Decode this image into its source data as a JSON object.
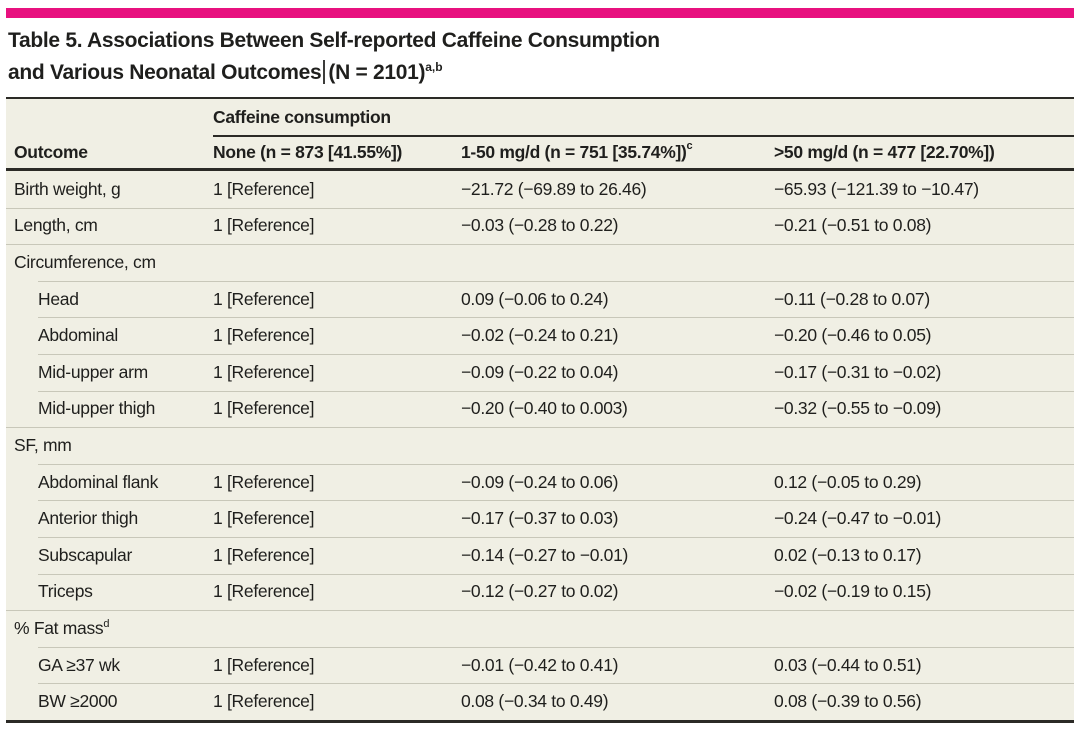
{
  "colors": {
    "accent_bar": "#e8117f",
    "table_background": "#f0efe4",
    "rule_dark": "#2b2a26",
    "rule_light": "#c8c7b9",
    "text": "#1f1f1d"
  },
  "title": {
    "line1": "Table 5. Associations Between Self-reported Caffeine Consumption",
    "line2_part1": "and Various Neonatal Outcomes",
    "line2_part2": "(N = 2101)",
    "sup": "a,b"
  },
  "header": {
    "group_label": "Caffeine consumption",
    "col_outcome": "Outcome",
    "col_none": "None (n = 873 [41.55%])",
    "col_low": "1-50 mg/d (n = 751 [35.74%])",
    "col_low_sup": "c",
    "col_high": ">50 mg/d (n = 477 [22.70%])"
  },
  "rows": [
    {
      "label": "Birth weight, g",
      "none": "1 [Reference]",
      "low": "−21.72 (−69.89 to 26.46)",
      "high": "−65.93 (−121.39 to −10.47)"
    },
    {
      "label": "Length, cm",
      "none": "1 [Reference]",
      "low": "−0.03 (−0.28 to 0.22)",
      "high": "−0.21 (−0.51 to 0.08)"
    },
    {
      "label": "Circumference, cm"
    },
    {
      "label": "Head",
      "none": "1 [Reference]",
      "low": "0.09 (−0.06 to 0.24)",
      "high": "−0.11 (−0.28 to 0.07)"
    },
    {
      "label": "Abdominal",
      "none": "1 [Reference]",
      "low": "−0.02 (−0.24 to 0.21)",
      "high": "−0.20 (−0.46 to 0.05)"
    },
    {
      "label": "Mid-upper arm",
      "none": "1 [Reference]",
      "low": "−0.09 (−0.22 to 0.04)",
      "high": "−0.17 (−0.31 to −0.02)"
    },
    {
      "label": "Mid-upper thigh",
      "none": "1 [Reference]",
      "low": "−0.20 (−0.40 to 0.003)",
      "high": "−0.32 (−0.55 to −0.09)"
    },
    {
      "label": "SF, mm"
    },
    {
      "label": "Abdominal flank",
      "none": "1 [Reference]",
      "low": "−0.09 (−0.24 to 0.06)",
      "high": "0.12 (−0.05 to 0.29)"
    },
    {
      "label": "Anterior thigh",
      "none": "1 [Reference]",
      "low": "−0.17 (−0.37 to 0.03)",
      "high": "−0.24 (−0.47 to −0.01)"
    },
    {
      "label": "Subscapular",
      "none": "1 [Reference]",
      "low": "−0.14 (−0.27 to −0.01)",
      "high": "0.02 (−0.13 to 0.17)"
    },
    {
      "label": "Triceps",
      "none": "1 [Reference]",
      "low": "−0.12 (−0.27 to 0.02)",
      "high": "−0.02 (−0.19 to 0.15)"
    },
    {
      "label": "% Fat mass",
      "sup": "d"
    },
    {
      "label": "GA ≥37 wk",
      "none": "1 [Reference]",
      "low": "−0.01 (−0.42 to 0.41)",
      "high": "0.03 (−0.44 to 0.51)"
    },
    {
      "label": "BW ≥2000",
      "none": "1 [Reference]",
      "low": "0.08 (−0.34 to 0.49)",
      "high": "0.08 (−0.39 to 0.56)"
    }
  ]
}
